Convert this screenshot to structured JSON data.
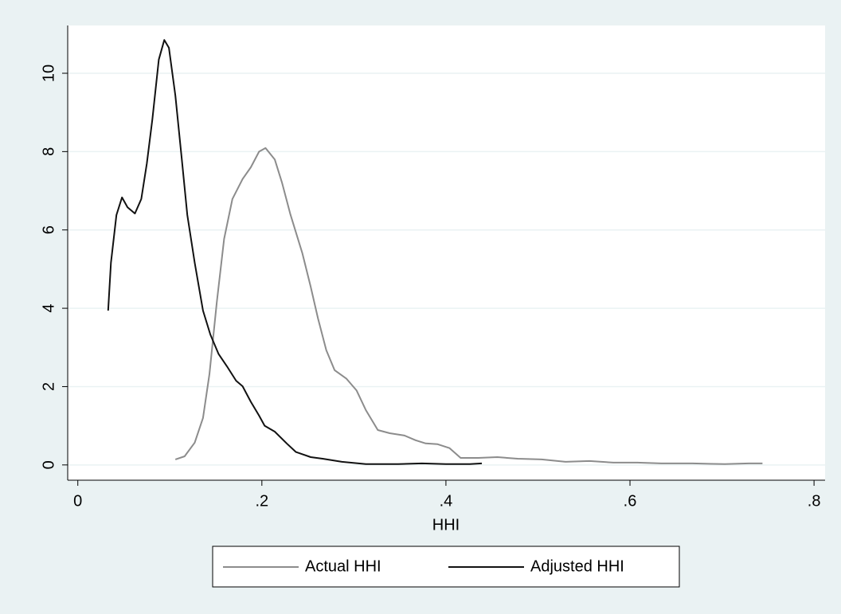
{
  "chart_data": {
    "type": "line",
    "xlabel": "HHI",
    "xlim": [
      -0.011,
      0.812
    ],
    "ylim": [
      -0.39,
      11.22
    ],
    "xticks": [
      0,
      {
        "value": 0.2,
        "label": ".2"
      },
      {
        "value": 0.4,
        "label": ".4"
      },
      {
        "value": 0.6,
        "label": ".6"
      },
      {
        "value": 0.8,
        "label": ".8"
      }
    ],
    "yticks": [
      0,
      2,
      4,
      6,
      8,
      10
    ],
    "grid": true,
    "legend": "bottom",
    "series": [
      {
        "name": "Actual HHI",
        "color": "#8c8c8c",
        "x": [
          0.106,
          0.116,
          0.127,
          0.136,
          0.143,
          0.151,
          0.159,
          0.168,
          0.179,
          0.188,
          0.197,
          0.204,
          0.214,
          0.222,
          0.231,
          0.244,
          0.253,
          0.261,
          0.27,
          0.279,
          0.292,
          0.303,
          0.313,
          0.326,
          0.339,
          0.355,
          0.367,
          0.378,
          0.391,
          0.404,
          0.416,
          0.435,
          0.456,
          0.478,
          0.504,
          0.53,
          0.556,
          0.582,
          0.608,
          0.634,
          0.668,
          0.703,
          0.729,
          0.744
        ],
        "values": [
          0.14,
          0.22,
          0.57,
          1.2,
          2.32,
          4.15,
          5.77,
          6.79,
          7.3,
          7.6,
          8.0,
          8.09,
          7.8,
          7.2,
          6.4,
          5.4,
          4.55,
          3.74,
          2.93,
          2.42,
          2.2,
          1.9,
          1.4,
          0.89,
          0.81,
          0.75,
          0.63,
          0.55,
          0.53,
          0.43,
          0.18,
          0.18,
          0.2,
          0.16,
          0.14,
          0.08,
          0.1,
          0.06,
          0.06,
          0.04,
          0.04,
          0.02,
          0.04,
          0.04
        ]
      },
      {
        "name": "Adjusted HHI",
        "color": "#111111",
        "x": [
          0.033,
          0.036,
          0.042,
          0.048,
          0.054,
          0.062,
          0.069,
          0.075,
          0.081,
          0.088,
          0.094,
          0.099,
          0.106,
          0.113,
          0.119,
          0.127,
          0.136,
          0.144,
          0.153,
          0.162,
          0.172,
          0.179,
          0.188,
          0.197,
          0.203,
          0.214,
          0.227,
          0.237,
          0.253,
          0.266,
          0.287,
          0.313,
          0.348,
          0.374,
          0.4,
          0.426,
          0.439
        ],
        "values": [
          3.94,
          5.16,
          6.38,
          6.83,
          6.58,
          6.42,
          6.79,
          7.7,
          8.82,
          10.35,
          10.85,
          10.65,
          9.43,
          7.8,
          6.38,
          5.16,
          3.94,
          3.33,
          2.83,
          2.52,
          2.15,
          2.01,
          1.61,
          1.26,
          1.0,
          0.85,
          0.55,
          0.33,
          0.2,
          0.16,
          0.08,
          0.02,
          0.02,
          0.04,
          0.02,
          0.02,
          0.04
        ]
      }
    ]
  }
}
